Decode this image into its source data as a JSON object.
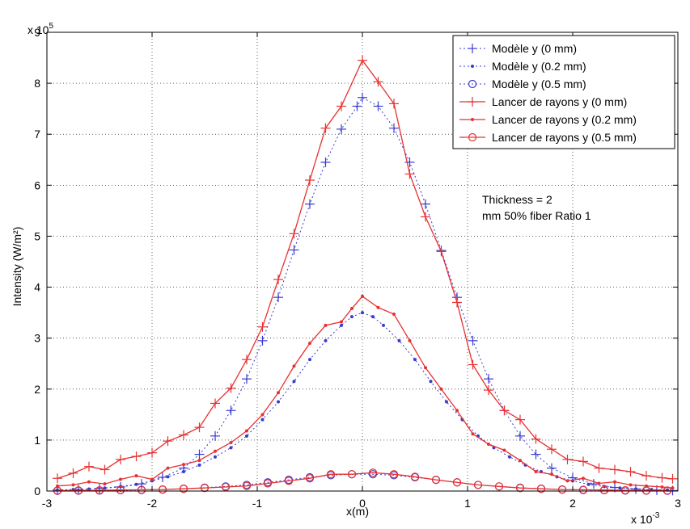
{
  "chart_data": {
    "type": "line",
    "xlabel": "x(m)",
    "ylabel": "Intensity (W/m²)",
    "x_multiplier": "x 10",
    "x_multiplier_exp": "-3",
    "y_multiplier": "x 10",
    "y_multiplier_exp": "5",
    "xlim": [
      -3,
      3
    ],
    "ylim": [
      0,
      9
    ],
    "x_scale_note": "x values in units of 1e-3 m",
    "y_scale_note": "y values in units of 1e5 W/m²",
    "xticks": [
      "-3",
      "-2",
      "-1",
      "0",
      "1",
      "2",
      "3"
    ],
    "yticks": [
      "0",
      "1",
      "2",
      "3",
      "4",
      "5",
      "6",
      "7",
      "8",
      "9"
    ],
    "grid": true,
    "legend_position": "top-right",
    "annotation": [
      "Thickness = 2",
      "mm 50% fiber Ratio 1"
    ],
    "x": [
      -2.9,
      -2.733,
      -2.567,
      -2.4,
      -2.233,
      -2.067,
      -1.9,
      -1.733,
      -1.567,
      -1.4,
      -1.233,
      -1.067,
      -0.9,
      -0.733,
      -0.567,
      -0.4,
      -0.233,
      -0.067,
      0.1,
      0.267,
      0.433,
      0.6,
      0.767,
      0.933,
      1.1,
      1.267,
      1.433,
      1.6,
      1.767,
      1.933,
      2.1,
      2.267,
      2.433,
      2.6,
      2.767,
      2.933
    ],
    "series": [
      {
        "name": "Modèle y (0 mm)",
        "color": "#3a3ad0",
        "style": "dotted-plus",
        "x": [
          -2.9,
          -2.7,
          -2.5,
          -2.3,
          -2.1,
          -1.9,
          -1.7,
          -1.55,
          -1.4,
          -1.25,
          -1.1,
          -0.95,
          -0.8,
          -0.65,
          -0.5,
          -0.35,
          -0.2,
          -0.05,
          0.0,
          0.15,
          0.3,
          0.45,
          0.6,
          0.75,
          0.9,
          1.05,
          1.2,
          1.35,
          1.5,
          1.65,
          1.8,
          2.0,
          2.2,
          2.4,
          2.6,
          2.8,
          2.95
        ],
        "values": [
          0.02,
          0.03,
          0.05,
          0.08,
          0.14,
          0.27,
          0.45,
          0.72,
          1.08,
          1.58,
          2.2,
          2.95,
          3.8,
          4.73,
          5.63,
          6.45,
          7.1,
          7.55,
          7.72,
          7.55,
          7.12,
          6.45,
          5.63,
          4.72,
          3.8,
          2.95,
          2.2,
          1.58,
          1.08,
          0.72,
          0.45,
          0.26,
          0.14,
          0.07,
          0.04,
          0.02,
          0.01
        ]
      },
      {
        "name": "Modèle y (0.2 mm)",
        "color": "#3a3ad0",
        "style": "dotted-dot",
        "x": [
          -2.9,
          -2.75,
          -2.6,
          -2.45,
          -2.3,
          -2.15,
          -2.0,
          -1.85,
          -1.7,
          -1.55,
          -1.4,
          -1.25,
          -1.1,
          -0.95,
          -0.8,
          -0.65,
          -0.5,
          -0.35,
          -0.2,
          -0.1,
          0.0,
          0.1,
          0.2,
          0.35,
          0.5,
          0.65,
          0.8,
          0.95,
          1.1,
          1.25,
          1.4,
          1.55,
          1.7,
          1.85,
          2.0,
          2.15,
          2.3,
          2.45,
          2.6,
          2.75,
          2.9
        ],
        "values": [
          0.02,
          0.03,
          0.04,
          0.06,
          0.09,
          0.13,
          0.2,
          0.28,
          0.38,
          0.51,
          0.67,
          0.85,
          1.08,
          1.4,
          1.75,
          2.15,
          2.58,
          2.95,
          3.25,
          3.42,
          3.5,
          3.42,
          3.25,
          2.95,
          2.58,
          2.15,
          1.75,
          1.4,
          1.08,
          0.85,
          0.67,
          0.51,
          0.38,
          0.28,
          0.2,
          0.13,
          0.09,
          0.06,
          0.04,
          0.03,
          0.02
        ]
      },
      {
        "name": "Modèle  y (0.5 mm)",
        "color": "#3a3ad0",
        "style": "dotted-circle",
        "x": [
          -2.9,
          -2.7,
          -2.5,
          -2.3,
          -2.1,
          -1.9,
          -1.7,
          -1.5,
          -1.3,
          -1.1,
          -0.9,
          -0.7,
          -0.5,
          -0.3,
          -0.1,
          0.1,
          0.3,
          0.5,
          0.7,
          0.9,
          1.1,
          1.3,
          1.5,
          1.7,
          1.9,
          2.1,
          2.3,
          2.5,
          2.7,
          2.9
        ],
        "values": [
          0.005,
          0.007,
          0.01,
          0.015,
          0.02,
          0.03,
          0.045,
          0.065,
          0.09,
          0.12,
          0.17,
          0.22,
          0.27,
          0.31,
          0.33,
          0.33,
          0.31,
          0.27,
          0.22,
          0.17,
          0.12,
          0.09,
          0.065,
          0.045,
          0.03,
          0.02,
          0.015,
          0.01,
          0.007,
          0.005
        ]
      },
      {
        "name": "Lancer de rayons  y (0 mm)",
        "color": "#e83030",
        "style": "solid-plus",
        "x": [
          -2.9,
          -2.75,
          -2.6,
          -2.45,
          -2.3,
          -2.15,
          -2.0,
          -1.85,
          -1.7,
          -1.55,
          -1.4,
          -1.25,
          -1.1,
          -0.95,
          -0.8,
          -0.65,
          -0.5,
          -0.35,
          -0.2,
          0.0,
          0.15,
          0.3,
          0.45,
          0.6,
          0.75,
          0.9,
          1.05,
          1.2,
          1.35,
          1.5,
          1.65,
          1.8,
          1.95,
          2.1,
          2.25,
          2.4,
          2.55,
          2.7,
          2.85,
          2.95
        ],
        "values": [
          0.25,
          0.35,
          0.48,
          0.42,
          0.62,
          0.68,
          0.75,
          0.98,
          1.1,
          1.25,
          1.72,
          2.02,
          2.58,
          3.22,
          4.15,
          5.05,
          6.1,
          7.12,
          7.55,
          8.45,
          8.03,
          7.6,
          6.22,
          5.38,
          4.7,
          3.7,
          2.48,
          1.98,
          1.58,
          1.4,
          1.02,
          0.82,
          0.62,
          0.58,
          0.45,
          0.42,
          0.38,
          0.3,
          0.26,
          0.24
        ]
      },
      {
        "name": "Lancer de rayons  y (0.2 mm)",
        "color": "#e83030",
        "style": "solid-dot",
        "x": [
          -2.9,
          -2.75,
          -2.6,
          -2.45,
          -2.3,
          -2.15,
          -2.0,
          -1.85,
          -1.7,
          -1.55,
          -1.4,
          -1.25,
          -1.1,
          -0.95,
          -0.8,
          -0.65,
          -0.5,
          -0.35,
          -0.2,
          -0.1,
          0.0,
          0.15,
          0.3,
          0.45,
          0.6,
          0.75,
          0.9,
          1.05,
          1.2,
          1.35,
          1.5,
          1.65,
          1.8,
          1.95,
          2.1,
          2.25,
          2.4,
          2.55,
          2.7,
          2.85,
          2.95
        ],
        "values": [
          0.1,
          0.12,
          0.18,
          0.14,
          0.23,
          0.3,
          0.23,
          0.45,
          0.52,
          0.6,
          0.78,
          0.95,
          1.18,
          1.5,
          1.93,
          2.45,
          2.9,
          3.25,
          3.32,
          3.58,
          3.82,
          3.6,
          3.47,
          2.95,
          2.42,
          2.0,
          1.58,
          1.12,
          0.92,
          0.8,
          0.6,
          0.38,
          0.33,
          0.2,
          0.25,
          0.15,
          0.18,
          0.12,
          0.1,
          0.08,
          0.06
        ]
      },
      {
        "name": "Lancer de rayons y (0.5 mm)",
        "color": "#e83030",
        "style": "solid-circle",
        "x": [
          -2.9,
          -2.7,
          -2.5,
          -2.3,
          -2.1,
          -1.9,
          -1.7,
          -1.5,
          -1.3,
          -1.1,
          -0.9,
          -0.7,
          -0.5,
          -0.3,
          -0.1,
          0.1,
          0.3,
          0.5,
          0.7,
          0.9,
          1.1,
          1.3,
          1.5,
          1.7,
          1.9,
          2.1,
          2.3,
          2.5,
          2.7,
          2.9
        ],
        "values": [
          0.01,
          0.012,
          0.015,
          0.02,
          0.025,
          0.03,
          0.045,
          0.06,
          0.08,
          0.1,
          0.15,
          0.2,
          0.25,
          0.33,
          0.33,
          0.36,
          0.33,
          0.28,
          0.22,
          0.17,
          0.12,
          0.09,
          0.06,
          0.045,
          0.03,
          0.025,
          0.02,
          0.015,
          0.012,
          0.01
        ]
      }
    ]
  }
}
